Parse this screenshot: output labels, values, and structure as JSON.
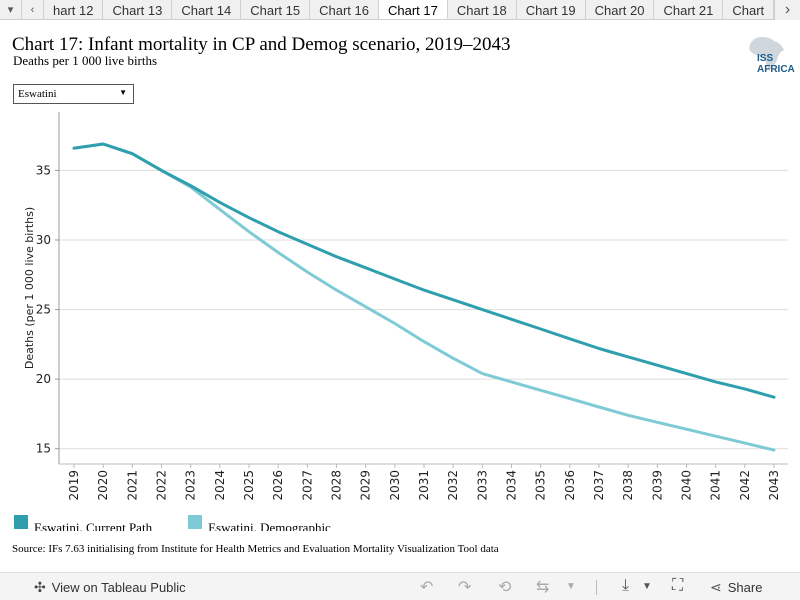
{
  "tabs": [
    {
      "label": "hart 12",
      "active": false
    },
    {
      "label": "Chart 13",
      "active": false
    },
    {
      "label": "Chart 14",
      "active": false
    },
    {
      "label": "Chart 15",
      "active": false
    },
    {
      "label": "Chart 16",
      "active": false
    },
    {
      "label": "Chart 17",
      "active": true
    },
    {
      "label": "Chart 18",
      "active": false
    },
    {
      "label": "Chart 19",
      "active": false
    },
    {
      "label": "Chart 20",
      "active": false
    },
    {
      "label": "Chart 21",
      "active": false
    },
    {
      "label": "Chart",
      "active": false
    }
  ],
  "header": {
    "title": "Chart 17: Infant mortality in CP and Demog scenario, 2019–2043",
    "subtitle": "Deaths per 1 000 live births",
    "logo_text": "ISS AFRICA"
  },
  "filter": {
    "selected": "Eswatini"
  },
  "chart_data": {
    "type": "line",
    "ylabel": "Deaths (per 1 000 live births)",
    "ylim": [
      13.9,
      39.2
    ],
    "yticks": [
      15,
      20,
      25,
      30,
      35
    ],
    "grid": true,
    "legend_position": "bottom-left",
    "x": [
      2019,
      2020,
      2021,
      2022,
      2023,
      2024,
      2025,
      2026,
      2027,
      2028,
      2029,
      2030,
      2031,
      2032,
      2033,
      2034,
      2035,
      2036,
      2037,
      2038,
      2039,
      2040,
      2041,
      2042,
      2043
    ],
    "series": [
      {
        "name": "Eswatini, Current Path",
        "color": "#2f9fae",
        "values": [
          36.6,
          36.9,
          36.2,
          35.0,
          33.9,
          32.7,
          31.6,
          30.6,
          29.7,
          28.8,
          28.0,
          27.2,
          26.4,
          25.7,
          25.0,
          24.3,
          23.6,
          22.9,
          22.2,
          21.6,
          21.0,
          20.4,
          19.8,
          19.3,
          18.7
        ]
      },
      {
        "name": "Eswatini, Demographic",
        "color": "#7ecbd6",
        "values": [
          36.6,
          36.9,
          36.2,
          35.0,
          33.8,
          32.2,
          30.6,
          29.1,
          27.7,
          26.4,
          25.2,
          24.0,
          22.7,
          21.5,
          20.4,
          19.8,
          19.2,
          18.6,
          18.0,
          17.4,
          16.9,
          16.4,
          15.9,
          15.4,
          14.9
        ]
      }
    ]
  },
  "source": "Source: IFs 7.63 initialising from Institute for Health Metrics and Evaluation Mortality Visualization Tool data",
  "toolbar": {
    "view_label": "View on Tableau Public",
    "share_label": "Share"
  }
}
